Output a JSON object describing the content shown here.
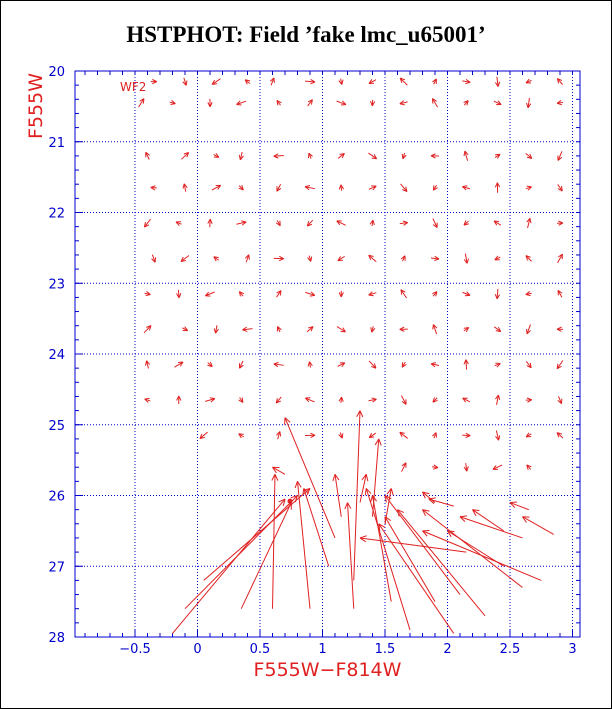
{
  "title": "HSTPHOT: Field ’fake lmc_u65001’",
  "chart_data": {
    "type": "vector",
    "panel_label": "WF2",
    "xlabel": "F555W−F814W",
    "ylabel": "F555W",
    "xlim": [
      -0.98,
      3.06
    ],
    "ylim": [
      28,
      20
    ],
    "x_ticks": [
      -0.5,
      0,
      0.5,
      1,
      1.5,
      2,
      2.5,
      3
    ],
    "x_tick_labels": [
      "−0.5",
      "0",
      "0.5",
      "1",
      "1.5",
      "2",
      "2.5",
      "3"
    ],
    "y_ticks": [
      20,
      21,
      22,
      23,
      24,
      25,
      26,
      27,
      28
    ],
    "y_tick_labels": [
      "20",
      "21",
      "22",
      "23",
      "24",
      "25",
      "26",
      "27",
      "28"
    ],
    "grid": true,
    "colors": {
      "axes": "#0000cc",
      "vectors": "#e02020",
      "text": "#000000"
    },
    "small_vectors": {
      "note": "short symbols on a 0.25 mag grid",
      "rows": [
        {
          "y": 20.15,
          "x": [
            -0.35,
            -0.1,
            0.15,
            0.4,
            0.6,
            0.9,
            1.15,
            1.4,
            1.65,
            1.9,
            2.15,
            2.4,
            2.65,
            2.9
          ]
        },
        {
          "y": 20.45,
          "x": [
            -0.45,
            -0.2,
            0.1,
            0.35,
            0.65,
            0.9,
            1.15,
            1.4,
            1.65,
            1.9,
            2.15,
            2.4,
            2.65,
            2.9
          ]
        },
        {
          "y": 21.2,
          "x": [
            -0.4,
            -0.1,
            0.15,
            0.35,
            0.65,
            0.9,
            1.15,
            1.4,
            1.65,
            1.9,
            2.15,
            2.4,
            2.65,
            2.9
          ]
        },
        {
          "y": 21.65,
          "x": [
            -0.35,
            -0.1,
            0.15,
            0.35,
            0.65,
            0.9,
            1.15,
            1.4,
            1.65,
            1.9,
            2.15,
            2.4,
            2.65,
            2.9
          ]
        },
        {
          "y": 22.15,
          "x": [
            -0.4,
            -0.15,
            0.1,
            0.35,
            0.65,
            0.9,
            1.15,
            1.4,
            1.65,
            1.9,
            2.15,
            2.4,
            2.65,
            2.9
          ]
        },
        {
          "y": 22.65,
          "x": [
            -0.35,
            -0.1,
            0.15,
            0.4,
            0.65,
            0.9,
            1.15,
            1.4,
            1.65,
            1.9,
            2.15,
            2.4,
            2.65,
            2.9
          ]
        },
        {
          "y": 23.15,
          "x": [
            -0.4,
            -0.15,
            0.1,
            0.35,
            0.65,
            0.9,
            1.15,
            1.4,
            1.65,
            1.9,
            2.15,
            2.4,
            2.65,
            2.9
          ]
        },
        {
          "y": 23.65,
          "x": [
            -0.4,
            -0.1,
            0.15,
            0.4,
            0.65,
            0.9,
            1.15,
            1.4,
            1.65,
            1.9,
            2.15,
            2.4,
            2.65,
            2.9
          ]
        },
        {
          "y": 24.15,
          "x": [
            -0.4,
            -0.15,
            0.1,
            0.35,
            0.65,
            0.9,
            1.15,
            1.4,
            1.65,
            1.9,
            2.15,
            2.4,
            2.65,
            2.9
          ]
        },
        {
          "y": 24.65,
          "x": [
            -0.4,
            -0.15,
            0.1,
            0.35,
            0.65,
            0.9,
            1.15,
            1.4,
            1.65,
            1.9,
            2.15,
            2.4,
            2.65,
            2.9
          ]
        },
        {
          "y": 25.15,
          "x": [
            0.05,
            0.35,
            0.65,
            0.9,
            1.15,
            1.4,
            1.65,
            1.9,
            2.15,
            2.4,
            2.65,
            2.9
          ]
        },
        {
          "y": 25.6,
          "x": [
            1.65,
            1.9,
            2.15,
            2.4,
            2.65
          ]
        }
      ]
    },
    "long_vectors": [
      {
        "x1": -0.2,
        "y1": 27.95,
        "x2": 0.7,
        "y2": 26.05
      },
      {
        "x1": -0.1,
        "y1": 27.6,
        "x2": 0.8,
        "y2": 26.0
      },
      {
        "x1": 0.05,
        "y1": 27.2,
        "x2": 0.9,
        "y2": 25.9
      },
      {
        "x1": 0.35,
        "y1": 27.6,
        "x2": 0.75,
        "y2": 26.1
      },
      {
        "x1": 0.6,
        "y1": 27.6,
        "x2": 0.62,
        "y2": 25.7
      },
      {
        "x1": 0.9,
        "y1": 27.6,
        "x2": 0.8,
        "y2": 25.8
      },
      {
        "x1": 1.1,
        "y1": 26.6,
        "x2": 0.7,
        "y2": 24.9
      },
      {
        "x1": 1.05,
        "y1": 27.0,
        "x2": 0.85,
        "y2": 25.9
      },
      {
        "x1": 1.25,
        "y1": 27.6,
        "x2": 1.2,
        "y2": 26.1
      },
      {
        "x1": 1.25,
        "y1": 27.2,
        "x2": 1.3,
        "y2": 24.8
      },
      {
        "x1": 1.55,
        "y1": 27.5,
        "x2": 1.4,
        "y2": 26.0
      },
      {
        "x1": 1.7,
        "y1": 27.9,
        "x2": 1.35,
        "y2": 25.9
      },
      {
        "x1": 1.9,
        "y1": 27.5,
        "x2": 1.5,
        "y2": 26.3
      },
      {
        "x1": 2.05,
        "y1": 27.95,
        "x2": 1.45,
        "y2": 26.4
      },
      {
        "x1": 2.3,
        "y1": 27.7,
        "x2": 1.6,
        "y2": 26.2
      },
      {
        "x1": 2.1,
        "y1": 27.4,
        "x2": 1.5,
        "y2": 26.0
      },
      {
        "x1": 2.6,
        "y1": 27.3,
        "x2": 1.8,
        "y2": 26.2
      },
      {
        "x1": 2.75,
        "y1": 27.2,
        "x2": 1.8,
        "y2": 26.5
      },
      {
        "x1": 2.45,
        "y1": 27.0,
        "x2": 2.0,
        "y2": 26.5
      },
      {
        "x1": 2.15,
        "y1": 26.8,
        "x2": 1.3,
        "y2": 26.6
      },
      {
        "x1": 2.6,
        "y1": 26.6,
        "x2": 2.1,
        "y2": 26.3
      },
      {
        "x1": 2.45,
        "y1": 26.5,
        "x2": 2.2,
        "y2": 26.2
      },
      {
        "x1": 2.65,
        "y1": 26.2,
        "x2": 2.5,
        "y2": 26.1
      },
      {
        "x1": 2.85,
        "y1": 26.55,
        "x2": 2.6,
        "y2": 26.3
      },
      {
        "x1": 1.9,
        "y1": 26.1,
        "x2": 1.8,
        "y2": 25.95
      },
      {
        "x1": 2.05,
        "y1": 26.15,
        "x2": 1.85,
        "y2": 26.05
      },
      {
        "x1": 1.4,
        "y1": 26.3,
        "x2": 1.45,
        "y2": 25.2
      },
      {
        "x1": 1.15,
        "y1": 26.3,
        "x2": 1.1,
        "y2": 25.7
      },
      {
        "x1": 1.3,
        "y1": 26.1,
        "x2": 1.35,
        "y2": 25.7
      },
      {
        "x1": 1.5,
        "y1": 26.4,
        "x2": 1.55,
        "y2": 25.9
      },
      {
        "x1": 0.7,
        "y1": 25.7,
        "x2": 0.6,
        "y2": 25.6
      }
    ],
    "highlight_point": {
      "x": 0.74,
      "y": 26.08
    }
  }
}
